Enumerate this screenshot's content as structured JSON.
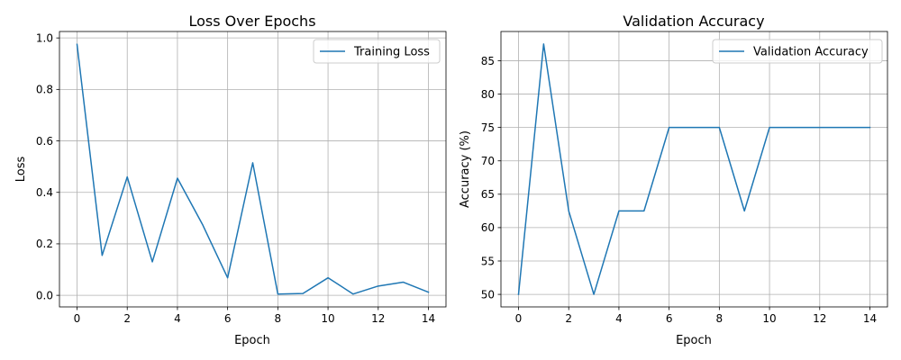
{
  "chart_data": [
    {
      "type": "line",
      "title": "Loss Over Epochs",
      "xlabel": "Epoch",
      "ylabel": "Loss",
      "x": [
        0,
        1,
        2,
        3,
        4,
        5,
        6,
        7,
        8,
        9,
        10,
        11,
        12,
        13,
        14
      ],
      "xlim": [
        -0.7,
        14.7
      ],
      "ylim": [
        -0.045,
        1.025
      ],
      "xticks": [
        0,
        2,
        4,
        6,
        8,
        10,
        12,
        14
      ],
      "yticks": [
        0.0,
        0.2,
        0.4,
        0.6,
        0.8,
        1.0
      ],
      "ytick_labels": [
        "0.0",
        "0.2",
        "0.4",
        "0.6",
        "0.8",
        "1.0"
      ],
      "grid": true,
      "legend_position": "top-right",
      "series": [
        {
          "name": "Training Loss",
          "color": "#1f77b4",
          "values": [
            0.975,
            0.155,
            0.46,
            0.13,
            0.455,
            0.275,
            0.068,
            0.515,
            0.005,
            0.007,
            0.068,
            0.005,
            0.036,
            0.051,
            0.012
          ]
        }
      ]
    },
    {
      "type": "line",
      "title": "Validation Accuracy",
      "xlabel": "Epoch",
      "ylabel": "Accuracy (%)",
      "x": [
        0,
        1,
        2,
        3,
        4,
        5,
        6,
        7,
        8,
        9,
        10,
        11,
        12,
        13,
        14
      ],
      "xlim": [
        -0.7,
        14.7
      ],
      "ylim": [
        48.125,
        89.375
      ],
      "xticks": [
        0,
        2,
        4,
        6,
        8,
        10,
        12,
        14
      ],
      "yticks": [
        50,
        55,
        60,
        65,
        70,
        75,
        80,
        85
      ],
      "ytick_labels": [
        "50",
        "55",
        "60",
        "65",
        "70",
        "75",
        "80",
        "85"
      ],
      "grid": true,
      "legend_position": "top-right",
      "series": [
        {
          "name": "Validation Accuracy",
          "color": "#1f77b4",
          "values": [
            50,
            87.5,
            62.5,
            50,
            62.5,
            62.5,
            75,
            75,
            75,
            62.5,
            75,
            75,
            75,
            75,
            75
          ]
        }
      ]
    }
  ]
}
